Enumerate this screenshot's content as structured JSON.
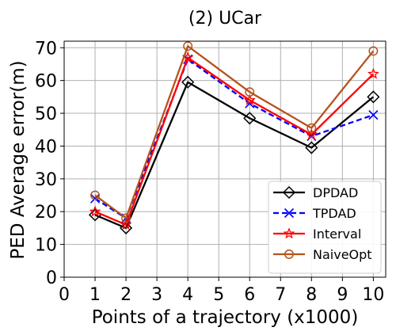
{
  "chart_data": {
    "type": "line",
    "title": "(2) UCar",
    "xlabel": "Points of a trajectory (x1000)",
    "ylabel": "PED Average error(m)",
    "xlim": [
      0,
      10.4
    ],
    "ylim": [
      0,
      72
    ],
    "x_ticks": [
      "0",
      "1",
      "2",
      "3",
      "4",
      "5",
      "6",
      "7",
      "8",
      "9",
      "10"
    ],
    "y_ticks": [
      "0",
      "10",
      "20",
      "30",
      "40",
      "50",
      "60",
      "70"
    ],
    "grid": true,
    "legend_position": "bottom-right",
    "x": [
      1,
      2,
      4,
      6,
      8,
      10
    ],
    "series": [
      {
        "name": "DPDAD",
        "values": [
          19,
          15,
          59.5,
          48.5,
          39.5,
          55
        ],
        "color": "#000000",
        "marker": "diamond",
        "dash": "solid"
      },
      {
        "name": "TPDAD",
        "values": [
          24,
          18,
          66.5,
          53,
          43,
          49.5
        ],
        "color": "#0000ff",
        "marker": "x",
        "dash": "dashed"
      },
      {
        "name": "Interval",
        "values": [
          20,
          16,
          67,
          54,
          43.5,
          62
        ],
        "color": "#ff0000",
        "marker": "star",
        "dash": "solid"
      },
      {
        "name": "NaiveOpt",
        "values": [
          25,
          18,
          70.5,
          56.5,
          45.5,
          69
        ],
        "color": "#b5521c",
        "marker": "circle",
        "dash": "solid"
      }
    ]
  }
}
